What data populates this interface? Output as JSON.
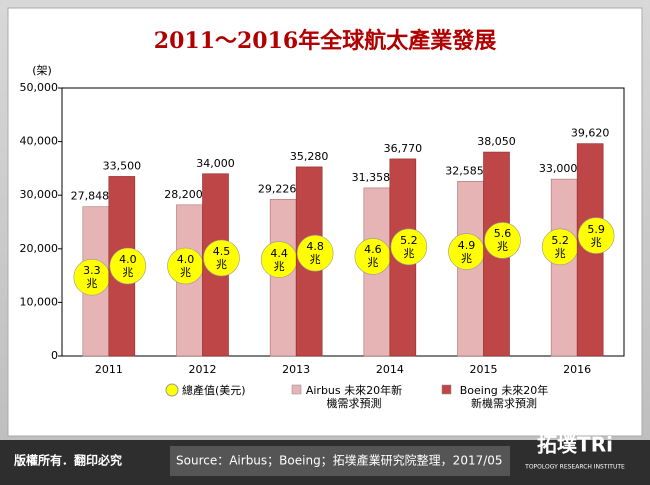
{
  "chart_data": {
    "type": "bar",
    "title": "2011～2016年全球航太產業發展",
    "y_label": "(架)",
    "categories": [
      "2011",
      "2012",
      "2013",
      "2014",
      "2015",
      "2016"
    ],
    "ylim": [
      0,
      50000
    ],
    "yticks": [
      0,
      {
        "value": 10000,
        "label": "10,000"
      },
      {
        "value": 20000,
        "label": "20,000"
      },
      {
        "value": 30000,
        "label": "30,000"
      },
      {
        "value": 40000,
        "label": "40,000"
      },
      {
        "value": 50000,
        "label": "50,000"
      }
    ],
    "revenue_name": "總產值(美元)",
    "revenue_color": "#ffff00",
    "series": [
      {
        "name": "Airbus 未來20年新機需求預測",
        "color": "#e6b4b4",
        "values": [
          27848,
          28200,
          29226,
          31358,
          32585,
          33000
        ],
        "value_labels": [
          "27,848",
          "28,200",
          "29,226",
          "31,358",
          "32,585",
          "33,000"
        ],
        "revenue": [
          3.3,
          4.0,
          4.4,
          4.6,
          4.9,
          5.2
        ],
        "revenue_labels": [
          "3.3兆",
          "4.0兆",
          "4.4兆",
          "4.6兆",
          "4.9兆",
          "5.2兆"
        ]
      },
      {
        "name": "Boeing 未來20年新機需求預測",
        "color": "#bf4646",
        "values": [
          33500,
          34000,
          35280,
          36770,
          38050,
          39620
        ],
        "value_labels": [
          "33,500",
          "34,000",
          "35,280",
          "36,770",
          "38,050",
          "39,620"
        ],
        "revenue": [
          4.0,
          4.5,
          4.8,
          5.2,
          5.6,
          5.9
        ],
        "revenue_labels": [
          "4.0兆",
          "4.5兆",
          "4.8兆",
          "5.2兆",
          "5.6兆",
          "5.9兆"
        ]
      }
    ]
  },
  "footer": {
    "copyright": "版權所有．翻印必究",
    "source": "Source：Airbus；Boeing；拓墣產業研究院整理，2017/05"
  },
  "logo": {
    "name": "拓墣TRi",
    "subtitle": "TOPOLOGY RESEARCH INSTITUTE"
  }
}
